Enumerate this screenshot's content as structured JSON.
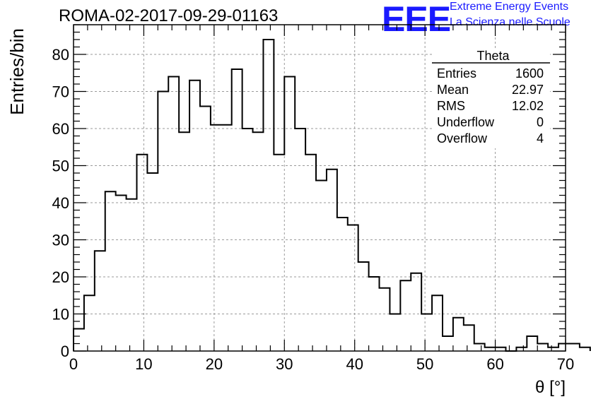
{
  "header": {
    "title": "ROMA-02-2017-09-29-01163",
    "logo_text": "EEE",
    "logo_line1": "Extreme Energy Events",
    "logo_line2": "La Scienza nelle Scuole",
    "logo_color": "#1a1aff"
  },
  "stats_box": {
    "name": "Theta",
    "rows": [
      {
        "label": "Entries",
        "value": "1600"
      },
      {
        "label": "Mean",
        "value": "22.97"
      },
      {
        "label": "RMS",
        "value": "12.02"
      },
      {
        "label": "Underflow",
        "value": "0"
      },
      {
        "label": "Overflow",
        "value": "4"
      }
    ]
  },
  "chart_data": {
    "type": "histogram",
    "xlabel": "θ [°]",
    "ylabel": "Entries/bin",
    "xlim": [
      0,
      70
    ],
    "ylim": [
      0,
      88
    ],
    "bin_width": 1.5,
    "x_ticks": [
      0,
      10,
      20,
      30,
      40,
      50,
      60,
      70
    ],
    "y_ticks": [
      0,
      10,
      20,
      30,
      40,
      50,
      60,
      70,
      80
    ],
    "grid": true,
    "line_color": "#000000",
    "bin_edges_start": 0,
    "values": [
      6,
      15,
      27,
      43,
      42,
      41,
      53,
      48,
      70,
      74,
      59,
      73,
      66,
      61,
      61,
      76,
      60,
      59,
      84,
      53,
      74,
      60,
      53,
      46,
      49,
      36,
      34,
      24,
      20,
      17,
      10,
      19,
      21,
      10,
      15,
      4,
      9,
      7,
      2,
      1,
      1,
      0,
      1,
      4,
      2,
      1,
      2,
      2,
      1
    ]
  }
}
